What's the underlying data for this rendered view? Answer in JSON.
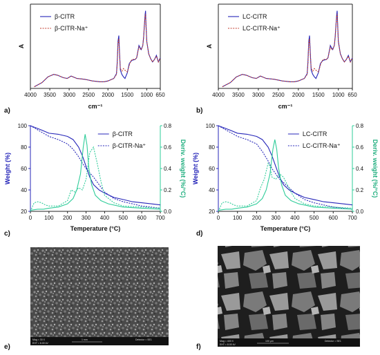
{
  "panel_letters": [
    "a)",
    "b)",
    "c)",
    "d)",
    "e)",
    "f)"
  ],
  "colors": {
    "blue": "#2424b8",
    "red": "#c0392b",
    "green": "#2ecc99",
    "blue_dark": "#1b1b90"
  },
  "sem": {
    "e": {
      "label_mag": "Mag = 30 X",
      "label_det": "Detector = SE1",
      "label_eht": "EHT = 8.00 kV",
      "label_scale": "1 mm"
    },
    "f": {
      "label_mag": "Mag = 400 X",
      "label_det": "Detector = SE1",
      "label_eht": "EHT = 8.00 kV",
      "label_scale": "100 µm"
    }
  },
  "chart_data": [
    {
      "panel": "a)",
      "type": "line",
      "title": "",
      "xlabel": "cm⁻¹",
      "ylabel": "A",
      "xlim": [
        4000,
        650
      ],
      "x_reversed": true,
      "xticks": [
        4000,
        3500,
        3000,
        2500,
        2000,
        1500,
        1000,
        650
      ],
      "legend_position": "top-left",
      "series": [
        {
          "name": "β-CITR",
          "style": "solid",
          "color": "#2424b8",
          "x": [
            3900,
            3700,
            3550,
            3400,
            3300,
            3150,
            3050,
            2950,
            2900,
            2800,
            2600,
            2400,
            2200,
            2100,
            2000,
            1850,
            1780,
            1760,
            1740,
            1720,
            1700,
            1680,
            1640,
            1600,
            1560,
            1500,
            1450,
            1420,
            1380,
            1300,
            1260,
            1220,
            1200,
            1180,
            1140,
            1100,
            1080,
            1060,
            1040,
            1030,
            1020,
            1000,
            950,
            900,
            850,
            800,
            750,
            700,
            650
          ],
          "y": [
            0.0,
            0.05,
            0.12,
            0.15,
            0.14,
            0.11,
            0.1,
            0.13,
            0.12,
            0.1,
            0.09,
            0.07,
            0.06,
            0.06,
            0.07,
            0.1,
            0.16,
            0.3,
            0.55,
            0.62,
            0.4,
            0.2,
            0.15,
            0.12,
            0.1,
            0.17,
            0.28,
            0.3,
            0.32,
            0.33,
            0.35,
            0.45,
            0.5,
            0.48,
            0.45,
            0.5,
            0.6,
            0.75,
            0.88,
            0.92,
            0.78,
            0.55,
            0.4,
            0.34,
            0.3,
            0.33,
            0.38,
            0.3,
            0.35
          ]
        },
        {
          "name": "β-CITR-Na⁺",
          "style": "dotted",
          "color": "#c0392b",
          "x": [
            3900,
            3700,
            3550,
            3400,
            3300,
            3150,
            3050,
            2950,
            2900,
            2800,
            2600,
            2400,
            2200,
            2100,
            2000,
            1850,
            1780,
            1760,
            1740,
            1720,
            1700,
            1680,
            1640,
            1600,
            1560,
            1500,
            1450,
            1420,
            1380,
            1300,
            1260,
            1220,
            1200,
            1180,
            1140,
            1100,
            1080,
            1060,
            1040,
            1030,
            1020,
            1000,
            950,
            900,
            850,
            800,
            750,
            700,
            650
          ],
          "y": [
            0.0,
            0.05,
            0.12,
            0.15,
            0.14,
            0.11,
            0.1,
            0.13,
            0.12,
            0.1,
            0.09,
            0.07,
            0.06,
            0.06,
            0.07,
            0.1,
            0.15,
            0.28,
            0.52,
            0.58,
            0.38,
            0.22,
            0.19,
            0.22,
            0.2,
            0.18,
            0.26,
            0.3,
            0.33,
            0.33,
            0.35,
            0.44,
            0.48,
            0.46,
            0.45,
            0.5,
            0.6,
            0.75,
            0.86,
            0.88,
            0.76,
            0.55,
            0.4,
            0.34,
            0.3,
            0.33,
            0.37,
            0.3,
            0.35
          ]
        }
      ]
    },
    {
      "panel": "b)",
      "type": "line",
      "title": "",
      "xlabel": "cm⁻¹",
      "ylabel": "A",
      "xlim": [
        4000,
        650
      ],
      "x_reversed": true,
      "xticks": [
        4000,
        3500,
        3000,
        2500,
        2000,
        1500,
        1000,
        650
      ],
      "legend_position": "top-left",
      "series": [
        {
          "name": "LC-CITR",
          "style": "solid",
          "color": "#2424b8",
          "x": [
            3900,
            3700,
            3550,
            3400,
            3300,
            3150,
            3050,
            2950,
            2900,
            2800,
            2600,
            2400,
            2200,
            2100,
            2000,
            1850,
            1780,
            1760,
            1740,
            1720,
            1700,
            1680,
            1640,
            1600,
            1560,
            1500,
            1450,
            1420,
            1380,
            1300,
            1260,
            1220,
            1200,
            1180,
            1140,
            1100,
            1080,
            1060,
            1040,
            1030,
            1020,
            1000,
            950,
            900,
            850,
            800,
            750,
            700,
            650
          ],
          "y": [
            0.0,
            0.05,
            0.12,
            0.15,
            0.14,
            0.11,
            0.1,
            0.13,
            0.12,
            0.1,
            0.09,
            0.07,
            0.06,
            0.06,
            0.07,
            0.1,
            0.16,
            0.3,
            0.55,
            0.62,
            0.4,
            0.2,
            0.15,
            0.12,
            0.1,
            0.17,
            0.28,
            0.3,
            0.32,
            0.33,
            0.35,
            0.45,
            0.5,
            0.48,
            0.45,
            0.5,
            0.6,
            0.75,
            0.88,
            0.92,
            0.78,
            0.55,
            0.4,
            0.34,
            0.3,
            0.33,
            0.38,
            0.3,
            0.35
          ]
        },
        {
          "name": "LC-CITR-Na⁺",
          "style": "dotted",
          "color": "#c0392b",
          "x": [
            3900,
            3700,
            3550,
            3400,
            3300,
            3150,
            3050,
            2950,
            2900,
            2800,
            2600,
            2400,
            2200,
            2100,
            2000,
            1850,
            1780,
            1760,
            1740,
            1720,
            1700,
            1680,
            1640,
            1600,
            1560,
            1500,
            1450,
            1420,
            1380,
            1300,
            1260,
            1220,
            1200,
            1180,
            1140,
            1100,
            1080,
            1060,
            1040,
            1030,
            1020,
            1000,
            950,
            900,
            850,
            800,
            750,
            700,
            650
          ],
          "y": [
            0.0,
            0.05,
            0.12,
            0.15,
            0.14,
            0.11,
            0.1,
            0.13,
            0.12,
            0.1,
            0.09,
            0.07,
            0.06,
            0.06,
            0.07,
            0.1,
            0.15,
            0.28,
            0.52,
            0.58,
            0.38,
            0.22,
            0.19,
            0.22,
            0.2,
            0.18,
            0.26,
            0.3,
            0.33,
            0.33,
            0.35,
            0.44,
            0.48,
            0.46,
            0.45,
            0.5,
            0.6,
            0.75,
            0.86,
            0.88,
            0.76,
            0.55,
            0.4,
            0.34,
            0.3,
            0.33,
            0.37,
            0.3,
            0.35
          ]
        }
      ]
    },
    {
      "panel": "c)",
      "type": "line",
      "title": "",
      "xlabel": "Temperature (°C)",
      "ylabel": "Weight (%)",
      "y2label": "Deriv. weight (%/°C)",
      "xlim": [
        0,
        700
      ],
      "ylim": [
        20,
        100
      ],
      "y2lim": [
        0.0,
        0.8
      ],
      "xticks": [
        0,
        100,
        200,
        300,
        400,
        500,
        600,
        700
      ],
      "yticks": [
        20,
        40,
        60,
        80,
        100
      ],
      "y2ticks": [
        0.0,
        0.2,
        0.4,
        0.6,
        0.8
      ],
      "legend_position": "top-right",
      "series": [
        {
          "name": "β-CITR",
          "axis": "left",
          "style": "solid",
          "color": "#2424b8",
          "x": [
            0,
            30,
            60,
            100,
            150,
            200,
            230,
            260,
            280,
            300,
            320,
            340,
            370,
            400,
            450,
            500,
            550,
            600,
            650,
            700
          ],
          "y": [
            100,
            98,
            96,
            93,
            92,
            90,
            87,
            80,
            72,
            62,
            52,
            45,
            40,
            37,
            33,
            31,
            29,
            28,
            27,
            26
          ]
        },
        {
          "name": "β-CITR-Na⁺",
          "axis": "left",
          "style": "dotted",
          "color": "#2424b8",
          "x": [
            0,
            30,
            60,
            100,
            150,
            200,
            230,
            260,
            280,
            300,
            320,
            340,
            370,
            400,
            450,
            500,
            550,
            600,
            650,
            700
          ],
          "y": [
            100,
            97,
            94,
            90,
            87,
            83,
            78,
            71,
            65,
            60,
            56,
            52,
            45,
            38,
            32,
            29,
            27,
            25,
            24,
            23
          ]
        },
        {
          "axis": "right",
          "style": "solid",
          "color": "#2ecc99",
          "x": [
            0,
            40,
            70,
            100,
            150,
            200,
            230,
            250,
            270,
            285,
            295,
            305,
            315,
            330,
            350,
            380,
            420,
            500,
            600,
            700
          ],
          "y": [
            0.01,
            0.02,
            0.02,
            0.03,
            0.04,
            0.07,
            0.12,
            0.2,
            0.35,
            0.6,
            0.72,
            0.62,
            0.4,
            0.25,
            0.15,
            0.1,
            0.07,
            0.04,
            0.03,
            0.02
          ]
        },
        {
          "axis": "right",
          "style": "dotted",
          "color": "#2ecc99",
          "x": [
            0,
            20,
            40,
            60,
            80,
            100,
            150,
            200,
            220,
            240,
            260,
            280,
            300,
            320,
            340,
            360,
            380,
            400,
            450,
            500,
            600,
            700
          ],
          "y": [
            0.0,
            0.08,
            0.09,
            0.08,
            0.06,
            0.05,
            0.05,
            0.1,
            0.2,
            0.18,
            0.22,
            0.2,
            0.3,
            0.55,
            0.6,
            0.45,
            0.28,
            0.15,
            0.08,
            0.05,
            0.04,
            0.03
          ]
        }
      ]
    },
    {
      "panel": "d)",
      "type": "line",
      "title": "",
      "xlabel": "Temperature (°C)",
      "ylabel": "Weight (%)",
      "y2label": "Deriv. weight (%/°C)",
      "xlim": [
        0,
        700
      ],
      "ylim": [
        20,
        100
      ],
      "y2lim": [
        0.0,
        0.8
      ],
      "xticks": [
        0,
        100,
        200,
        300,
        400,
        500,
        600,
        700
      ],
      "yticks": [
        20,
        40,
        60,
        80,
        100
      ],
      "y2ticks": [
        0.0,
        0.2,
        0.4,
        0.6,
        0.8
      ],
      "legend_position": "top-right",
      "series": [
        {
          "name": "LC-CITR",
          "axis": "left",
          "style": "solid",
          "color": "#2424b8",
          "x": [
            0,
            30,
            60,
            100,
            150,
            200,
            230,
            260,
            280,
            300,
            320,
            340,
            370,
            400,
            450,
            500,
            550,
            600,
            650,
            700
          ],
          "y": [
            100,
            98,
            96,
            93,
            92,
            90,
            87,
            80,
            72,
            62,
            52,
            45,
            40,
            37,
            33,
            31,
            29,
            28,
            27,
            26
          ]
        },
        {
          "name": "LC-CITR-Na⁺",
          "axis": "left",
          "style": "dotted",
          "color": "#2424b8",
          "x": [
            0,
            30,
            60,
            100,
            150,
            200,
            230,
            260,
            280,
            300,
            320,
            340,
            370,
            400,
            450,
            500,
            550,
            600,
            650,
            700
          ],
          "y": [
            100,
            97,
            94,
            90,
            87,
            83,
            76,
            67,
            60,
            55,
            50,
            47,
            42,
            37,
            31,
            28,
            26,
            24,
            23,
            22
          ]
        },
        {
          "axis": "right",
          "style": "solid",
          "color": "#2ecc99",
          "x": [
            0,
            40,
            70,
            100,
            150,
            200,
            230,
            250,
            270,
            285,
            295,
            305,
            315,
            330,
            350,
            380,
            420,
            500,
            600,
            700
          ],
          "y": [
            0.01,
            0.02,
            0.02,
            0.03,
            0.04,
            0.07,
            0.12,
            0.2,
            0.35,
            0.58,
            0.67,
            0.58,
            0.4,
            0.25,
            0.15,
            0.1,
            0.07,
            0.04,
            0.03,
            0.02
          ]
        },
        {
          "axis": "right",
          "style": "dotted",
          "color": "#2ecc99",
          "x": [
            0,
            20,
            40,
            60,
            80,
            100,
            150,
            200,
            220,
            240,
            260,
            270,
            280,
            300,
            320,
            340,
            360,
            380,
            400,
            450,
            500,
            600,
            700
          ],
          "y": [
            0.0,
            0.08,
            0.09,
            0.08,
            0.06,
            0.05,
            0.05,
            0.1,
            0.22,
            0.3,
            0.45,
            0.42,
            0.32,
            0.3,
            0.35,
            0.32,
            0.25,
            0.18,
            0.12,
            0.07,
            0.05,
            0.04,
            0.03
          ]
        }
      ]
    }
  ]
}
